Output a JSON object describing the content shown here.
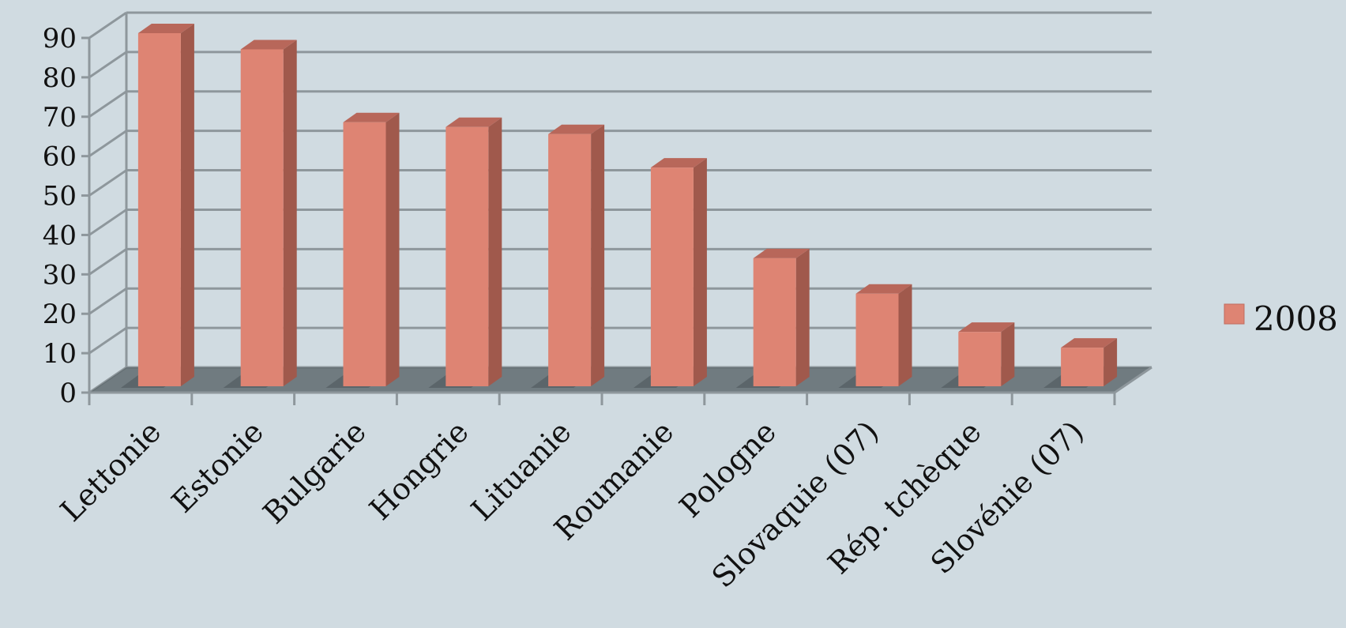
{
  "chart_data": {
    "type": "bar",
    "categories": [
      "Lettonie",
      "Estonie",
      "Bulgarie",
      "Hongrie",
      "Lituanie",
      "Roumanie",
      "Pologne",
      "Slovaquie (07)",
      "Rép. tchèque",
      "Slovénie (07)"
    ],
    "series": [
      {
        "name": "2008",
        "values": [
          89.6,
          85.5,
          67.0,
          65.8,
          64.0,
          55.5,
          32.5,
          23.5,
          13.8,
          9.8
        ]
      }
    ],
    "ylim": [
      0,
      90
    ],
    "yticks": [
      0,
      10,
      20,
      30,
      40,
      50,
      60,
      70,
      80,
      90
    ],
    "grid": true,
    "legend_position": "right",
    "colors": {
      "bar_front": "#de8473",
      "bar_side": "#a0594c",
      "bar_top": "#b8675a",
      "grid": "#8e979c",
      "floor": "#5f6a6f"
    }
  }
}
